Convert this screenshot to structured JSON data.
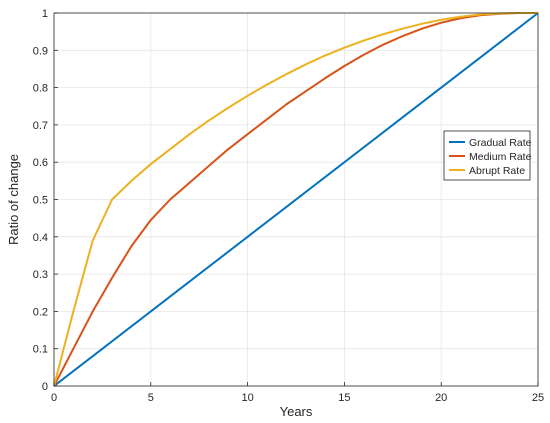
{
  "chart_data": {
    "type": "line",
    "title": "",
    "xlabel": "Years",
    "ylabel": "Ratio of change",
    "xlim": [
      0,
      25
    ],
    "ylim": [
      0,
      1
    ],
    "xticks": [
      "0",
      "5",
      "10",
      "15",
      "20",
      "25"
    ],
    "yticks": [
      "0",
      "0.1",
      "0.2",
      "0.3",
      "0.4",
      "0.5",
      "0.6",
      "0.7",
      "0.8",
      "0.9",
      "1"
    ],
    "grid": true,
    "legend_position": "right",
    "series": [
      {
        "name": "Gradual Rate",
        "color": "#0072BD",
        "x": [
          0,
          25
        ],
        "y": [
          0,
          1
        ]
      },
      {
        "name": "Medium Rate",
        "color": "#D95319",
        "x": [
          0,
          1,
          2,
          3,
          4,
          5,
          6,
          7,
          8,
          9,
          10,
          11,
          12,
          13,
          14,
          15,
          16,
          17,
          18,
          19,
          20,
          21,
          22,
          23,
          24,
          25
        ],
        "y": [
          0,
          0.1,
          0.2,
          0.29,
          0.375,
          0.445,
          0.5,
          0.545,
          0.59,
          0.635,
          0.675,
          0.715,
          0.755,
          0.79,
          0.825,
          0.858,
          0.888,
          0.915,
          0.938,
          0.958,
          0.974,
          0.986,
          0.994,
          0.998,
          1.0,
          1.0
        ]
      },
      {
        "name": "Abrupt Rate",
        "color": "#EDB120",
        "x": [
          0,
          1,
          2,
          3,
          4,
          5,
          6,
          7,
          8,
          9,
          10,
          11,
          12,
          13,
          14,
          15,
          16,
          17,
          18,
          19,
          20,
          21,
          22,
          23,
          24,
          25
        ],
        "y": [
          0,
          0.2,
          0.39,
          0.5,
          0.55,
          0.595,
          0.635,
          0.675,
          0.712,
          0.746,
          0.778,
          0.808,
          0.836,
          0.862,
          0.886,
          0.907,
          0.926,
          0.943,
          0.958,
          0.971,
          0.982,
          0.99,
          0.996,
          0.999,
          1.0,
          1.0
        ]
      }
    ]
  }
}
